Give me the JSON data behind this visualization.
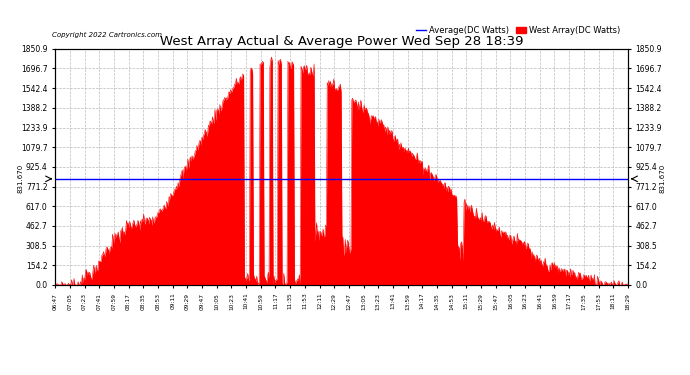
{
  "title": "West Array Actual & Average Power Wed Sep 28 18:39",
  "copyright": "Copyright 2022 Cartronics.com",
  "legend_avg": "Average(DC Watts)",
  "legend_west": "West Array(DC Watts)",
  "avg_value": 831.67,
  "ylim_max": 1850.9,
  "ylim_min": 0.0,
  "yticks": [
    0.0,
    154.2,
    308.5,
    462.7,
    617.0,
    771.2,
    925.4,
    1079.7,
    1233.9,
    1388.2,
    1542.4,
    1696.7,
    1850.9
  ],
  "avg_label": "831.670",
  "fill_color": "#ff0000",
  "line_color": "#ff0000",
  "avg_line_color": "#0000ff",
  "background_color": "#ffffff",
  "grid_color": "#aaaaaa",
  "title_color": "#000000",
  "copyright_color": "#000000",
  "legend_avg_color": "#0000ff",
  "legend_west_color": "#ff0000",
  "xtick_labels": [
    "06:47",
    "07:05",
    "07:23",
    "07:41",
    "07:59",
    "08:17",
    "08:35",
    "08:53",
    "09:11",
    "09:29",
    "09:47",
    "10:05",
    "10:23",
    "10:41",
    "10:59",
    "11:17",
    "11:35",
    "11:53",
    "12:11",
    "12:29",
    "12:47",
    "13:05",
    "13:23",
    "13:41",
    "13:59",
    "14:17",
    "14:35",
    "14:53",
    "15:11",
    "15:29",
    "15:47",
    "16:05",
    "16:23",
    "16:41",
    "16:59",
    "17:17",
    "17:35",
    "17:53",
    "18:11",
    "18:29"
  ]
}
